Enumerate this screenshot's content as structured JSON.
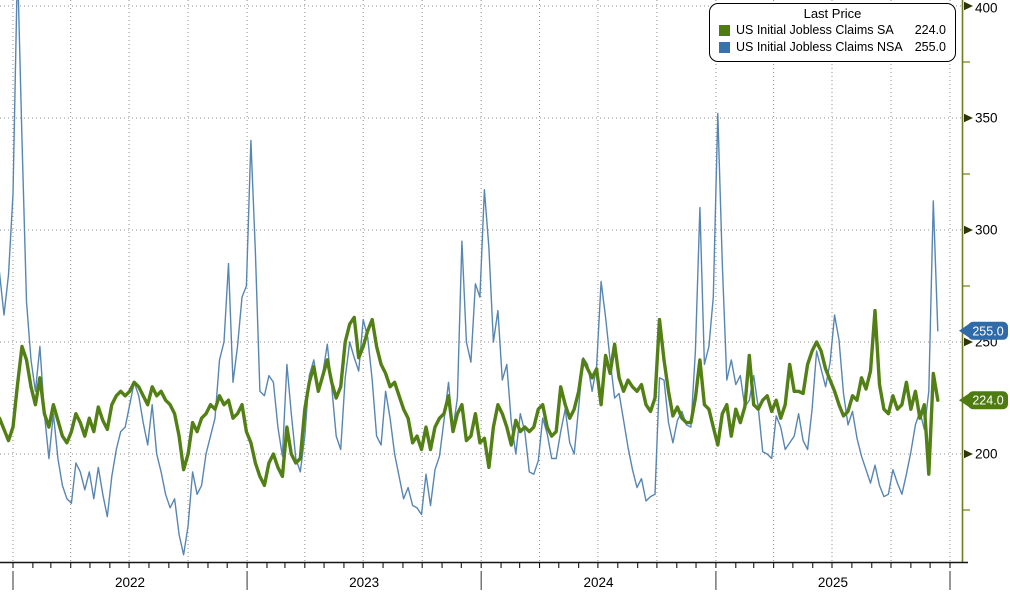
{
  "chart_data": {
    "type": "line",
    "title": "US Initial Jobless Claims (Last Price)",
    "legend": {
      "title": "Last Price",
      "position": "top-right",
      "entries": [
        {
          "label": "US Initial Jobless Claims SA",
          "value": "224.0",
          "color": "#4e7c10"
        },
        {
          "label": "US Initial Jobless Claims NSA",
          "value": "255.0",
          "color": "#3671b0"
        }
      ]
    },
    "x_axis": {
      "start_week_ending": "2021-12-11",
      "interval_days": 7,
      "year_labels": [
        "2022",
        "2023",
        "2024",
        "2025"
      ],
      "year_boundaries": [
        "2022-01-01",
        "2023-01-01",
        "2024-01-01",
        "2025-01-01",
        "2026-01-01"
      ],
      "grid": "quarterly",
      "minor_ticks": "monthly"
    },
    "y_axis": {
      "side": "right",
      "major_ticks": [
        400,
        350,
        300,
        250,
        200
      ],
      "minor_tick_step": 25,
      "top_value": 403,
      "bottom_value": 152,
      "grid": "on"
    },
    "last_price_tags": [
      {
        "series": "NSA",
        "value": "255.0",
        "bg": "#2e6ba8"
      },
      {
        "series": "SA",
        "value": "224.0",
        "bg": "#4e7c10"
      }
    ],
    "colors": {
      "background": "#ffffff",
      "grid": "#8f8f8f",
      "y_axis_line": "#6e7c20",
      "x_axis_line": "#141414",
      "tick_arrow": "#2e370b",
      "text": "#000000",
      "sa_line": "#538015",
      "nsa_line": "#5886b3"
    },
    "series": [
      {
        "name": "US Initial Jobless Claims SA",
        "short": "SA",
        "color": "#538015",
        "stroke_width": 3.4,
        "last_price": 224.0,
        "values": [
          216,
          211,
          206,
          212,
          231,
          248,
          242,
          230,
          222,
          234,
          218,
          212,
          222,
          215,
          208,
          205,
          210,
          218,
          214,
          208,
          216,
          210,
          221,
          215,
          211,
          222,
          226,
          228,
          226,
          228,
          232,
          230,
          226,
          222,
          230,
          226,
          228,
          224,
          222,
          218,
          208,
          193,
          200,
          214,
          210,
          216,
          218,
          222,
          220,
          226,
          222,
          224,
          216,
          218,
          222,
          210,
          205,
          196,
          190,
          186,
          196,
          200,
          194,
          190,
          212,
          200,
          196,
          198,
          220,
          232,
          239,
          228,
          235,
          242,
          232,
          225,
          230,
          250,
          258,
          261,
          243,
          248,
          255,
          260,
          248,
          240,
          236,
          230,
          232,
          226,
          220,
          216,
          205,
          208,
          202,
          212,
          202,
          212,
          216,
          218,
          226,
          210,
          218,
          222,
          206,
          208,
          218,
          205,
          207,
          194,
          212,
          222,
          218,
          212,
          204,
          215,
          210,
          212,
          210,
          212,
          220,
          222,
          212,
          208,
          210,
          230,
          222,
          216,
          220,
          228,
          242,
          238,
          234,
          238,
          222,
          244,
          236,
          249,
          234,
          228,
          233,
          230,
          228,
          231,
          222,
          219,
          225,
          260,
          242,
          228,
          217,
          221,
          216,
          214,
          214,
          225,
          242,
          222,
          220,
          212,
          204,
          218,
          222,
          208,
          220,
          214,
          221,
          244,
          222,
          220,
          224,
          226,
          219,
          224,
          216,
          222,
          240,
          228,
          228,
          227,
          240,
          246,
          250,
          246,
          238,
          233,
          228,
          222,
          217,
          219,
          226,
          224,
          234,
          229,
          237,
          264,
          231,
          220,
          218,
          226,
          220,
          222,
          232,
          220,
          228,
          216,
          222,
          191,
          236,
          224
        ]
      },
      {
        "name": "US Initial Jobless Claims NSA",
        "short": "NSA",
        "color": "#5886b3",
        "stroke_width": 1.4,
        "last_price": 255.0,
        "values": [
          281,
          262,
          280,
          316,
          419,
          340,
          268,
          242,
          228,
          248,
          218,
          198,
          218,
          198,
          186,
          180,
          178,
          196,
          192,
          184,
          192,
          180,
          194,
          182,
          172,
          190,
          202,
          210,
          212,
          222,
          232,
          226,
          214,
          204,
          222,
          200,
          192,
          182,
          176,
          180,
          164,
          155,
          168,
          192,
          182,
          186,
          200,
          208,
          216,
          242,
          250,
          285,
          232,
          248,
          270,
          275,
          340,
          290,
          228,
          226,
          235,
          232,
          212,
          199,
          240,
          218,
          198,
          192,
          208,
          235,
          242,
          228,
          236,
          249,
          230,
          208,
          202,
          234,
          250,
          243,
          237,
          260,
          252,
          233,
          208,
          204,
          228,
          216,
          200,
          190,
          180,
          185,
          177,
          176,
          173,
          191,
          177,
          193,
          199,
          215,
          232,
          211,
          225,
          295,
          250,
          241,
          276,
          270,
          318,
          292,
          250,
          264,
          233,
          240,
          214,
          200,
          218,
          210,
          192,
          191,
          197,
          216,
          209,
          198,
          198,
          210,
          220,
          205,
          200,
          221,
          243,
          240,
          228,
          239,
          277,
          261,
          242,
          225,
          227,
          215,
          203,
          193,
          185,
          189,
          179,
          181,
          182,
          234,
          233,
          214,
          205,
          215,
          219,
          213,
          212,
          246,
          310,
          240,
          248,
          270,
          352,
          285,
          233,
          242,
          231,
          235,
          221,
          224,
          235,
          221,
          201,
          200,
          198,
          217,
          212,
          202,
          205,
          208,
          218,
          206,
          202,
          220,
          246,
          238,
          230,
          241,
          262,
          251,
          227,
          213,
          219,
          207,
          199,
          193,
          187,
          195,
          186,
          181,
          182,
          193,
          187,
          182,
          191,
          201,
          213,
          219,
          211,
          228,
          313,
          255
        ]
      }
    ]
  }
}
